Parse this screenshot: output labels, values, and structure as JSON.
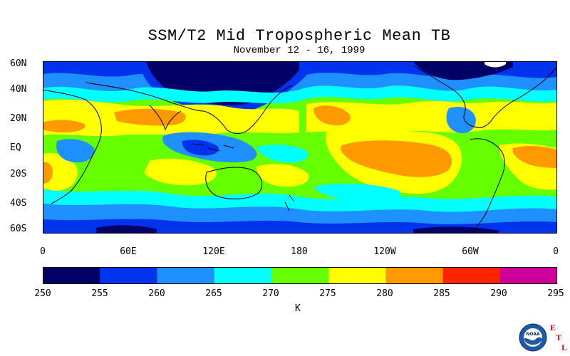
{
  "title": "SSM/T2 Mid Tropospheric Mean TB",
  "subtitle": "November 12 - 16, 1999",
  "lat_labels": [
    "60N",
    "40N",
    "20N",
    "EQ",
    "20S",
    "40S",
    "60S"
  ],
  "lon_labels": [
    "0",
    "60E",
    "120E",
    "180",
    "120W",
    "60W",
    "0"
  ],
  "colorbar": {
    "ticks": [
      "250",
      "255",
      "260",
      "265",
      "270",
      "275",
      "280",
      "285",
      "290",
      "295"
    ],
    "colors": [
      "#000066",
      "#0033ee",
      "#1e90ff",
      "#00ffff",
      "#66ff00",
      "#ffff00",
      "#ff9900",
      "#ff2200",
      "#cc0099"
    ],
    "unit": "K"
  },
  "logo": {
    "emblem_text": "NOAA",
    "letters": [
      "E",
      "T",
      "L"
    ],
    "emblem_icon": "noaa-emblem-icon"
  }
}
